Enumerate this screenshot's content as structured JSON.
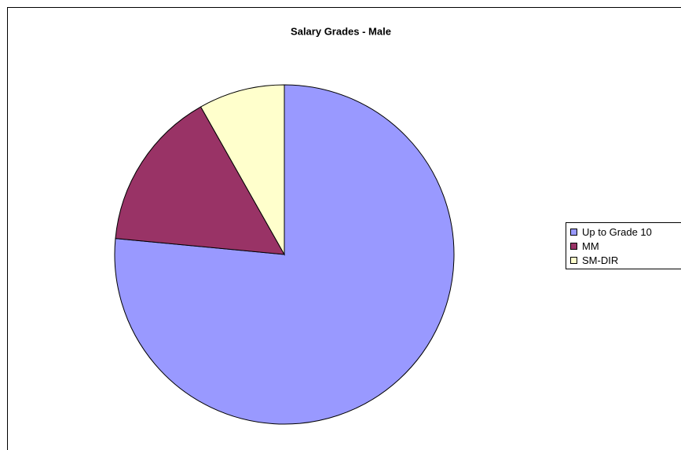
{
  "chart_data": {
    "type": "pie",
    "title": "Salary Grades - Male",
    "categories": [
      "Up to Grade 10",
      "MM",
      "SM-DIR"
    ],
    "values": [
      76.5,
      15.3,
      8.2
    ],
    "colors": [
      "#9999ff",
      "#993366",
      "#ffffcc"
    ],
    "legend": "right"
  }
}
